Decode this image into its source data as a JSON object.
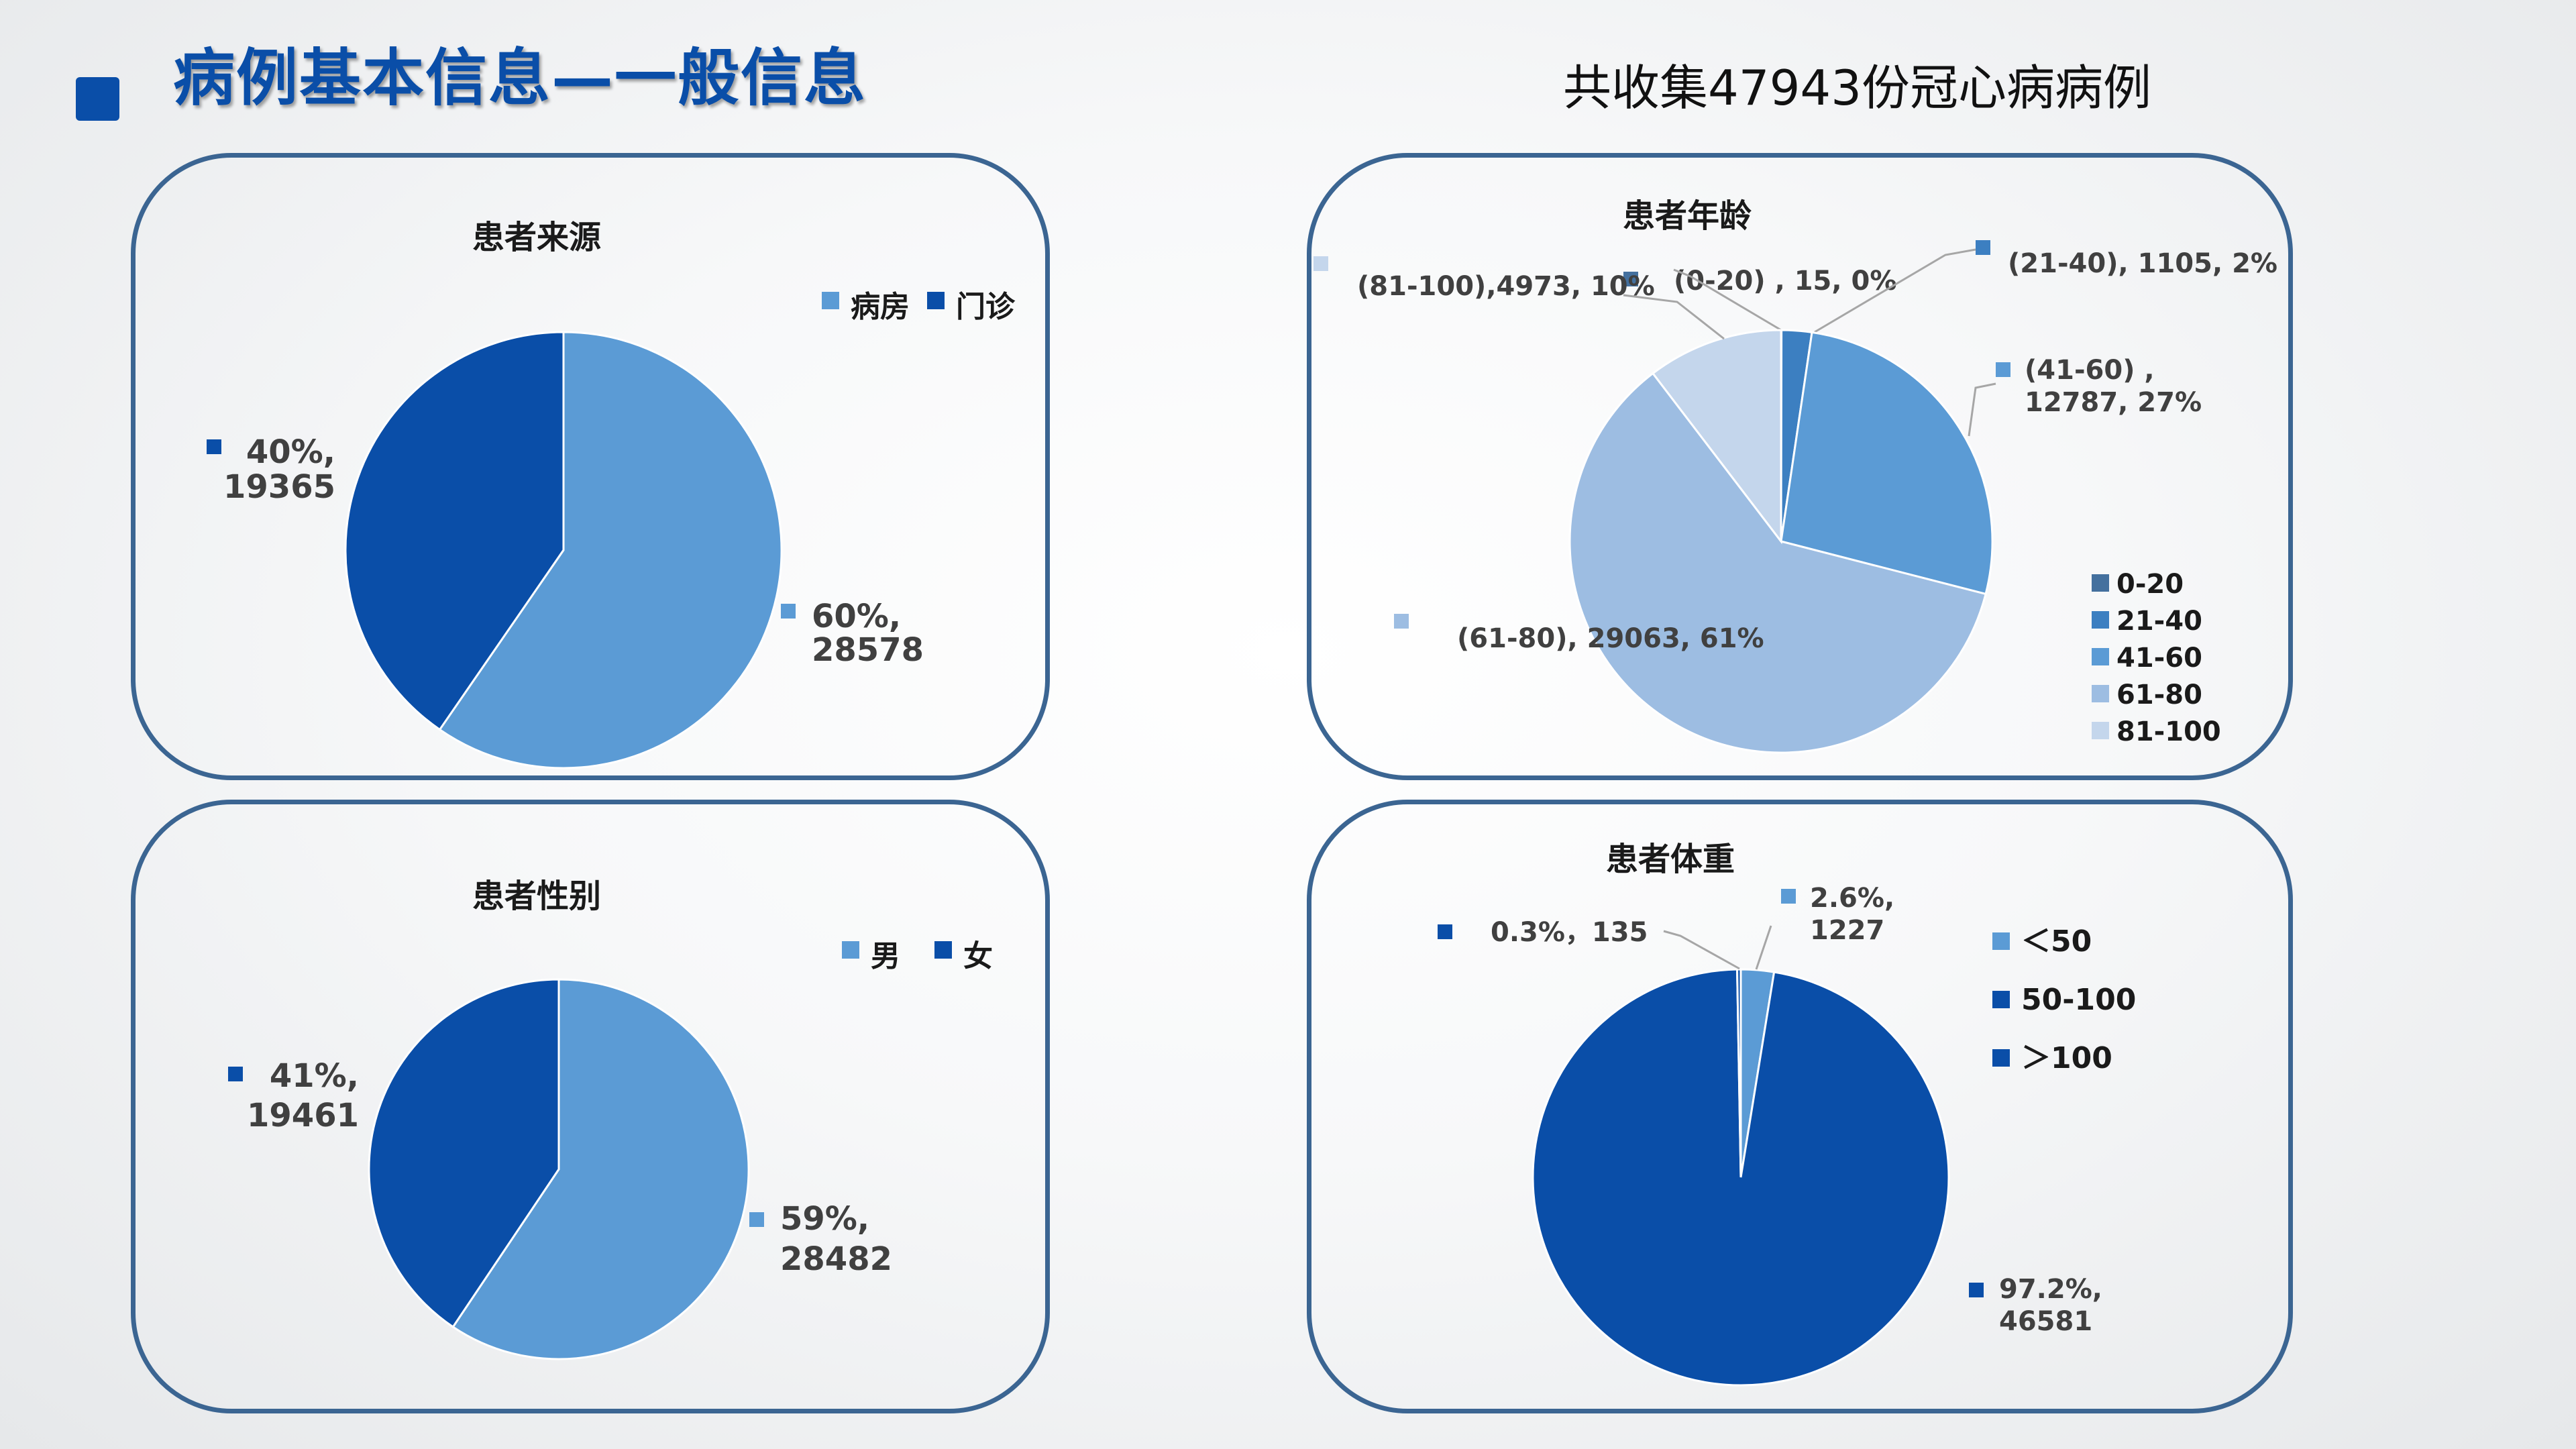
{
  "header": {
    "title": "病例基本信息—一般信息",
    "subtitle": "共收集47943份冠心病病例"
  },
  "colors": {
    "accent": "#0a4ea8",
    "panel_border": "#3b6592"
  },
  "chart_data": [
    {
      "type": "pie",
      "title": "患者来源",
      "legend_position": "top-right",
      "slices": [
        {
          "name": "病房",
          "value": 28578,
          "percent": "60%",
          "label": [
            "60%,",
            "28578"
          ],
          "color": "#5b9bd5"
        },
        {
          "name": "门诊",
          "value": 19365,
          "percent": "40%",
          "label": [
            "40%,",
            "19365"
          ],
          "color": "#0a4ea8"
        }
      ]
    },
    {
      "type": "pie",
      "title": "患者年龄",
      "legend_position": "bottom-right",
      "slices": [
        {
          "name": "0-20",
          "value": 15,
          "percent": "0%",
          "label": [
            "(0-20) , 15,   0%"
          ],
          "color": "#44709e"
        },
        {
          "name": "21-40",
          "value": 1105,
          "percent": "2%",
          "label": [
            "(21-40), 1105, 2%"
          ],
          "color": "#3c7fc1"
        },
        {
          "name": "41-60",
          "value": 12787,
          "percent": "27%",
          "label": [
            "(41-60) ,",
            "12787, 27%"
          ],
          "color": "#5b9bd5"
        },
        {
          "name": "61-80",
          "value": 29063,
          "percent": "61%",
          "label": [
            "(61-80), 29063, 61%"
          ],
          "color": "#9dbde2"
        },
        {
          "name": "81-100",
          "value": 4973,
          "percent": "10%",
          "label": [
            "(81-100),4973, 10%"
          ],
          "color": "#c4d6ec"
        }
      ]
    },
    {
      "type": "pie",
      "title": "患者性别",
      "legend_position": "top-right",
      "slices": [
        {
          "name": "男",
          "value": 28482,
          "percent": "59%",
          "label": [
            "59%,",
            "28482"
          ],
          "color": "#5b9bd5"
        },
        {
          "name": "女",
          "value": 19461,
          "percent": "41%",
          "label": [
            "41%,",
            "19461"
          ],
          "color": "#0a4ea8"
        }
      ]
    },
    {
      "type": "pie",
      "title": "患者体重",
      "legend_position": "right",
      "slices": [
        {
          "name": "＜50",
          "value": 1227,
          "percent": "2.6%",
          "label": [
            "2.6%,",
            "1227"
          ],
          "color": "#5b9bd5"
        },
        {
          "name": "50-100",
          "value": 46581,
          "percent": "97.2%",
          "label": [
            "97.2%,",
            "46581"
          ],
          "color": "#0a4ea8"
        },
        {
          "name": "＞100",
          "value": 135,
          "percent": "0.3%",
          "label": [
            "0.3%，135"
          ],
          "color": "#0a4ea8"
        }
      ]
    }
  ]
}
